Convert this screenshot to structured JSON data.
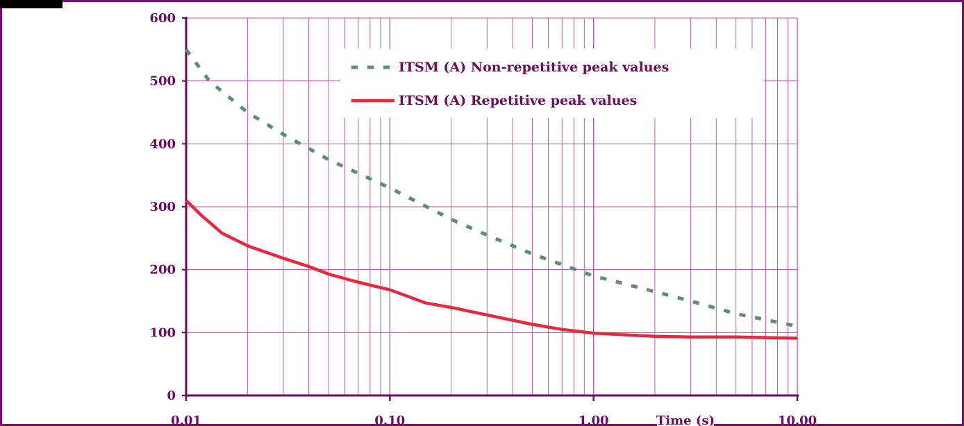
{
  "chart_data": {
    "type": "line",
    "x_scale": "log",
    "xlim": [
      0.01,
      10.0
    ],
    "ylim": [
      0,
      600
    ],
    "grid": true,
    "y_ticks": [
      "0",
      "100",
      "200",
      "300",
      "400",
      "500",
      "600"
    ],
    "x_ticks": [
      "0.01",
      "0.10",
      "1.00",
      "10.00"
    ],
    "xlabel": "Time (s)",
    "legend_position": "top-right",
    "series": [
      {
        "name": "ITSM (A) Non-repetitive peak values",
        "style": "dotted",
        "color": "#5f8c72",
        "x": [
          0.01,
          0.013,
          0.02,
          0.03,
          0.05,
          0.1,
          0.2,
          0.3,
          0.5,
          1.0,
          2.0,
          3.0,
          5.0,
          10.0
        ],
        "y": [
          550,
          500,
          450,
          415,
          375,
          330,
          280,
          255,
          225,
          190,
          165,
          150,
          130,
          110
        ]
      },
      {
        "name": "ITSM (A) Repetitive peak values",
        "style": "solid",
        "color": "#e8283c",
        "x": [
          0.01,
          0.012,
          0.015,
          0.02,
          0.03,
          0.04,
          0.05,
          0.07,
          0.1,
          0.15,
          0.2,
          0.3,
          0.5,
          0.7,
          1.0,
          2.0,
          3.0,
          5.0,
          10.0
        ],
        "y": [
          310,
          285,
          258,
          238,
          218,
          205,
          193,
          180,
          168,
          147,
          140,
          128,
          113,
          105,
          99,
          94,
          93,
          93,
          91
        ]
      }
    ]
  }
}
